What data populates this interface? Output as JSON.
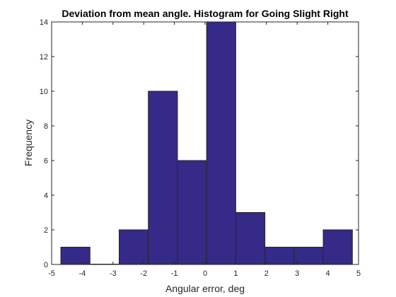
{
  "chart_data": {
    "type": "histogram",
    "title": "Deviation from mean angle. Histogram for Going Slight Right",
    "xlabel": "Angular error, deg",
    "ylabel": "Frequency",
    "xlim": [
      -5,
      5
    ],
    "ylim": [
      0,
      14
    ],
    "xticks": [
      -5,
      -4,
      -3,
      -2,
      -1,
      0,
      1,
      2,
      3,
      4,
      5
    ],
    "yticks": [
      0,
      2,
      4,
      6,
      8,
      10,
      12,
      14
    ],
    "bin_edges": [
      -4.7,
      -3.75,
      -2.8,
      -1.85,
      -0.9,
      0.05,
      1.0,
      1.95,
      2.9,
      3.85,
      4.8
    ],
    "values": [
      1,
      0,
      2,
      10,
      6,
      14,
      3,
      1,
      1,
      2
    ],
    "bar_color": "#352a87",
    "grid": false,
    "box": true
  }
}
